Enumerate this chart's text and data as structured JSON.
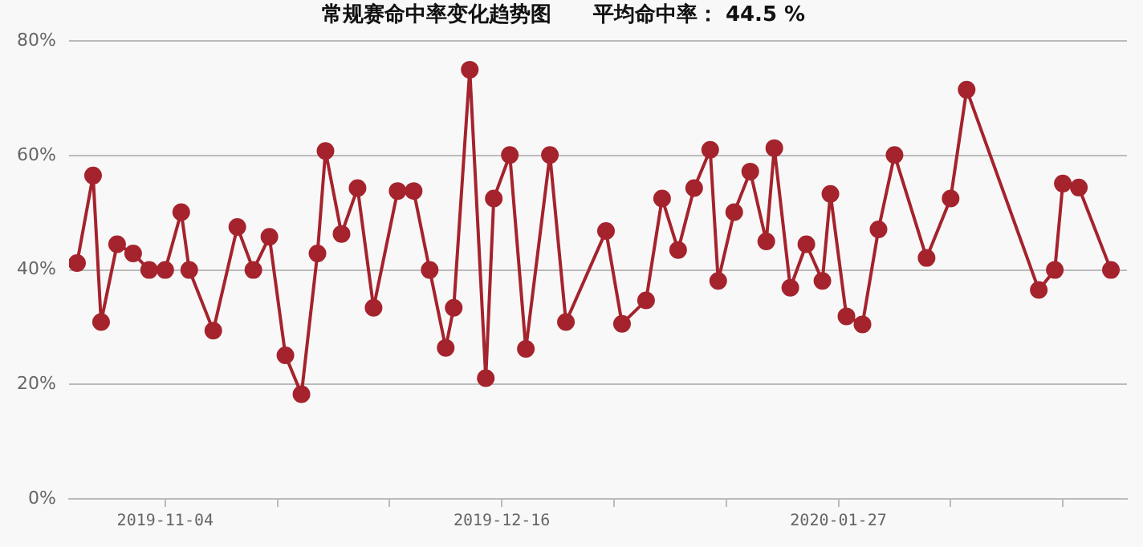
{
  "chart_data": {
    "type": "line",
    "title": "常规赛命中率变化趋势图　　平均命中率： 44.5 %",
    "x": [
      "2019-10-24",
      "2019-10-26",
      "2019-10-27",
      "2019-10-29",
      "2019-10-31",
      "2019-11-02",
      "2019-11-04",
      "2019-11-06",
      "2019-11-07",
      "2019-11-10",
      "2019-11-13",
      "2019-11-15",
      "2019-11-17",
      "2019-11-19",
      "2019-11-21",
      "2019-11-23",
      "2019-11-24",
      "2019-11-26",
      "2019-11-28",
      "2019-11-30",
      "2019-12-03",
      "2019-12-05",
      "2019-12-07",
      "2019-12-09",
      "2019-12-10",
      "2019-12-12",
      "2019-12-14",
      "2019-12-15",
      "2019-12-17",
      "2019-12-19",
      "2019-12-22",
      "2019-12-24",
      "2019-12-29",
      "2019-12-31",
      "2020-01-03",
      "2020-01-05",
      "2020-01-07",
      "2020-01-09",
      "2020-01-11",
      "2020-01-12",
      "2020-01-14",
      "2020-01-16",
      "2020-01-18",
      "2020-01-19",
      "2020-01-21",
      "2020-01-23",
      "2020-01-25",
      "2020-01-26",
      "2020-01-28",
      "2020-01-30",
      "2020-02-01",
      "2020-02-03",
      "2020-02-07",
      "2020-02-10",
      "2020-02-12",
      "2020-02-21",
      "2020-02-23",
      "2020-02-24",
      "2020-02-26",
      "2020-03-01"
    ],
    "series": [
      {
        "color": "#a5232d",
        "values": [
          41.2,
          56.5,
          30.9,
          44.5,
          42.9,
          40,
          40,
          50.1,
          40,
          29.4,
          47.5,
          40,
          45.8,
          25.1,
          18.3,
          42.9,
          60.8,
          46.3,
          54.3,
          33.4,
          53.8,
          53.8,
          40,
          26.4,
          33.4,
          75,
          21.1,
          52.5,
          60.1,
          26.2,
          60.1,
          30.9,
          46.8,
          30.6,
          34.7,
          52.5,
          43.5,
          54.3,
          61,
          38.1,
          50.1,
          57.2,
          45,
          61.3,
          36.9,
          44.5,
          38.1,
          53.3,
          31.9,
          30.5,
          47.1,
          60.1,
          42.1,
          52.5,
          71.5,
          36.5,
          40,
          55.1,
          54.4,
          40
        ]
      }
    ],
    "xlim": [
      "2019-10-23",
      "2020-03-03"
    ],
    "xticks": [
      {
        "value": "2019-11-04",
        "label": "2019-11-04"
      },
      {
        "value": "2019-11-18",
        "label": null
      },
      {
        "value": "2019-12-02",
        "label": null
      },
      {
        "value": "2019-12-16",
        "label": "2019-12-16"
      },
      {
        "value": "2019-12-30",
        "label": null
      },
      {
        "value": "2020-01-13",
        "label": null
      },
      {
        "value": "2020-01-27",
        "label": "2020-01-27"
      },
      {
        "value": "2020-02-10",
        "label": null
      },
      {
        "value": "2020-02-24",
        "label": null
      }
    ],
    "ylim": [
      0,
      80
    ],
    "yticks": [
      {
        "value": 0,
        "label": "0%"
      },
      {
        "value": 20,
        "label": "20%"
      },
      {
        "value": 40,
        "label": "40%"
      },
      {
        "value": 60,
        "label": "60%"
      },
      {
        "value": 80,
        "label": "80%"
      }
    ],
    "grid": "y",
    "legend": false,
    "marker": "circle",
    "line_style": "solid"
  }
}
